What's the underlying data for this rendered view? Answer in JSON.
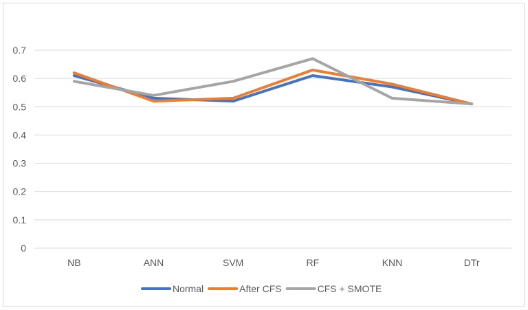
{
  "chart_data": {
    "type": "line",
    "title": "",
    "xlabel": "",
    "ylabel": "",
    "categories": [
      "NB",
      "ANN",
      "SVM",
      "RF",
      "KNN",
      "DTr"
    ],
    "ylim": [
      0,
      0.7
    ],
    "yticks": [
      "0",
      "0.1",
      "0.2",
      "0.3",
      "0.4",
      "0.5",
      "0.6",
      "0.7"
    ],
    "grid": "horizontal",
    "legend_position": "bottom",
    "series": [
      {
        "name": "Normal",
        "color": "#4472C4",
        "values": [
          0.61,
          0.53,
          0.52,
          0.61,
          0.57,
          0.51
        ]
      },
      {
        "name": "After CFS",
        "color": "#ED7D31",
        "values": [
          0.62,
          0.52,
          0.53,
          0.63,
          0.58,
          0.51
        ]
      },
      {
        "name": "CFS + SMOTE",
        "color": "#A5A5A5",
        "values": [
          0.59,
          0.54,
          0.59,
          0.67,
          0.53,
          0.51
        ]
      }
    ]
  }
}
